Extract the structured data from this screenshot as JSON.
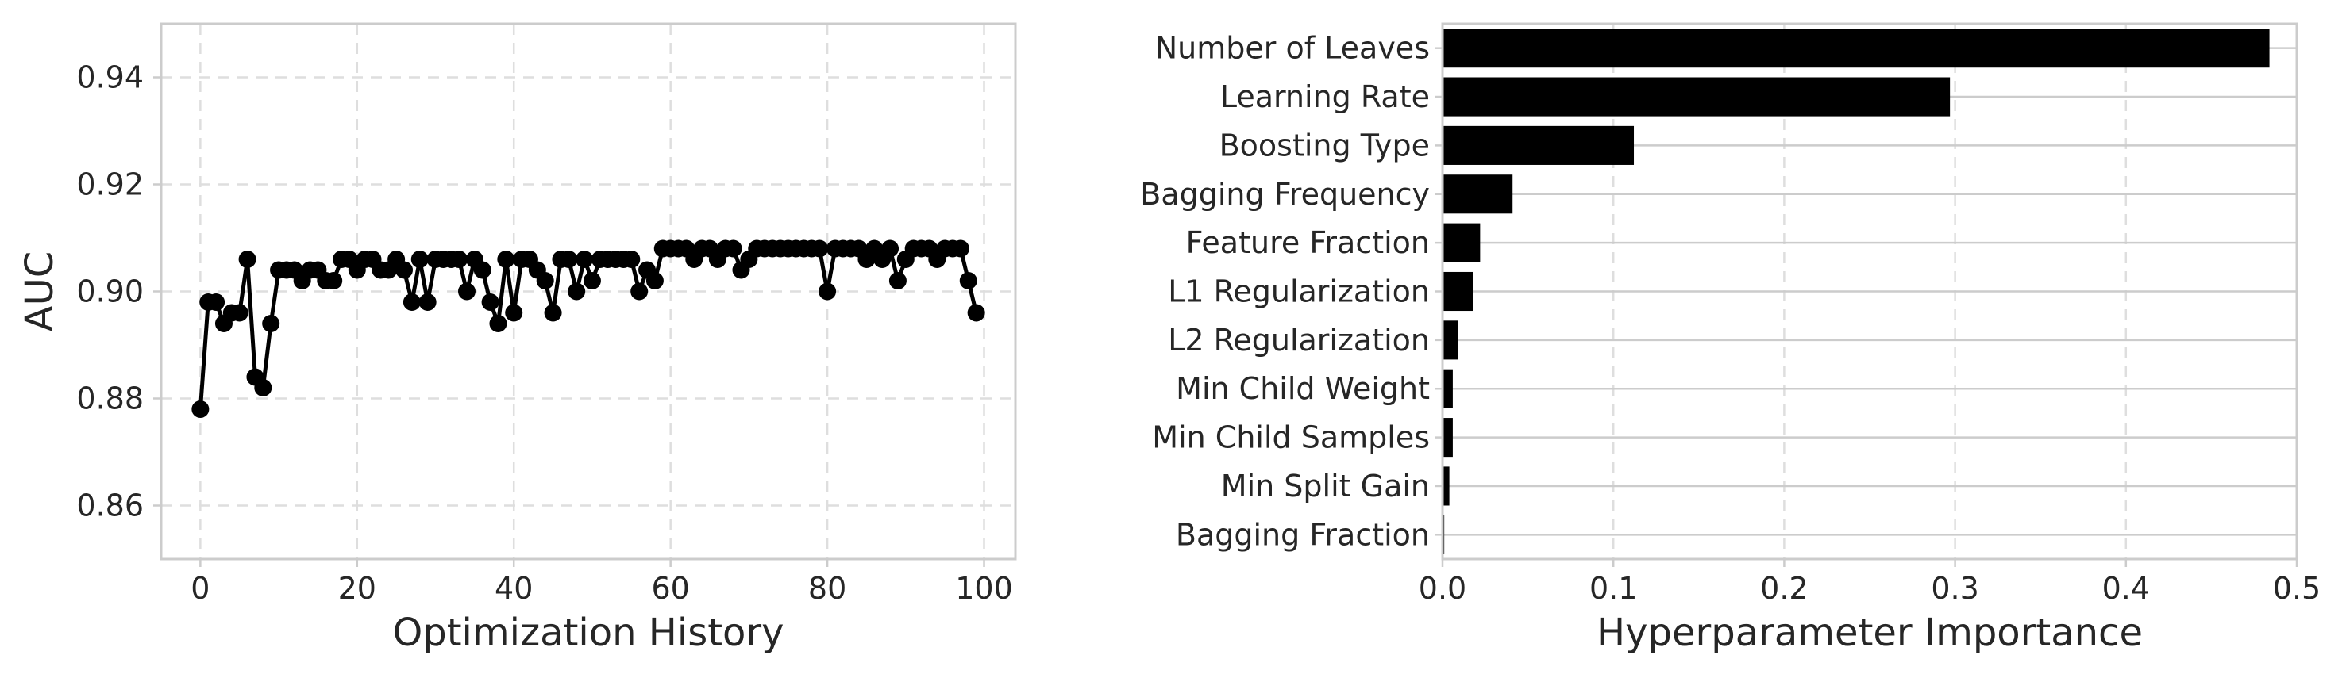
{
  "colors": {
    "marks": "#000000",
    "frame": "#cccccc",
    "grid": "#dedede",
    "text": "#262626"
  },
  "chart_data": [
    {
      "type": "line",
      "title": "",
      "xlabel": "Optimization History",
      "ylabel": "AUC",
      "xlim": [
        -5,
        104
      ],
      "ylim": [
        0.85,
        0.95
      ],
      "xticks": [
        0,
        20,
        40,
        60,
        80,
        100
      ],
      "xtick_labels": [
        "0",
        "20",
        "40",
        "60",
        "80",
        "100"
      ],
      "yticks": [
        0.86,
        0.88,
        0.9,
        0.92,
        0.94
      ],
      "ytick_labels": [
        "0.86",
        "0.88",
        "0.90",
        "0.92",
        "0.94"
      ],
      "grid": true,
      "markers": true,
      "x": [
        0,
        1,
        2,
        3,
        4,
        5,
        6,
        7,
        8,
        9,
        10,
        11,
        12,
        13,
        14,
        15,
        16,
        17,
        18,
        19,
        20,
        21,
        22,
        23,
        24,
        25,
        26,
        27,
        28,
        29,
        30,
        31,
        32,
        33,
        34,
        35,
        36,
        37,
        38,
        39,
        40,
        41,
        42,
        43,
        44,
        45,
        46,
        47,
        48,
        49,
        50,
        51,
        52,
        53,
        54,
        55,
        56,
        57,
        58,
        59,
        60,
        61,
        62,
        63,
        64,
        65,
        66,
        67,
        68,
        69,
        70,
        71,
        72,
        73,
        74,
        75,
        76,
        77,
        78,
        79,
        80,
        81,
        82,
        83,
        84,
        85,
        86,
        87,
        88,
        89,
        90,
        91,
        92,
        93,
        94,
        95,
        96,
        97,
        98,
        99
      ],
      "y": [
        0.878,
        0.898,
        0.898,
        0.894,
        0.896,
        0.896,
        0.906,
        0.884,
        0.882,
        0.894,
        0.904,
        0.904,
        0.904,
        0.902,
        0.904,
        0.904,
        0.902,
        0.902,
        0.906,
        0.906,
        0.904,
        0.906,
        0.906,
        0.904,
        0.904,
        0.906,
        0.904,
        0.898,
        0.906,
        0.898,
        0.906,
        0.906,
        0.906,
        0.906,
        0.9,
        0.906,
        0.904,
        0.898,
        0.894,
        0.906,
        0.896,
        0.906,
        0.906,
        0.904,
        0.902,
        0.896,
        0.906,
        0.906,
        0.9,
        0.906,
        0.902,
        0.906,
        0.906,
        0.906,
        0.906,
        0.906,
        0.9,
        0.904,
        0.902,
        0.908,
        0.908,
        0.908,
        0.908,
        0.906,
        0.908,
        0.908,
        0.906,
        0.908,
        0.908,
        0.904,
        0.906,
        0.908,
        0.908,
        0.908,
        0.908,
        0.908,
        0.908,
        0.908,
        0.908,
        0.908,
        0.9,
        0.908,
        0.908,
        0.908,
        0.908,
        0.906,
        0.908,
        0.906,
        0.908,
        0.902,
        0.906,
        0.908,
        0.908,
        0.908,
        0.906,
        0.908,
        0.908,
        0.908,
        0.902,
        0.896
      ]
    },
    {
      "type": "bar",
      "orientation": "horizontal",
      "title": "",
      "xlabel": "Hyperparameter Importance",
      "ylabel": "",
      "xlim": [
        0,
        0.5
      ],
      "xticks": [
        0.0,
        0.1,
        0.2,
        0.3,
        0.4,
        0.5
      ],
      "xtick_labels": [
        "0.0",
        "0.1",
        "0.2",
        "0.3",
        "0.4",
        "0.5"
      ],
      "grid": true,
      "categories": [
        "Number of Leaves",
        "Learning Rate",
        "Boosting Type",
        "Bagging Frequency",
        "Feature Fraction",
        "L1 Regularization",
        "L2 Regularization",
        "Min Child Weight",
        "Min Child Samples",
        "Min Split Gain",
        "Bagging Fraction"
      ],
      "values": [
        0.484,
        0.297,
        0.112,
        0.041,
        0.022,
        0.018,
        0.009,
        0.006,
        0.006,
        0.004,
        0.001
      ]
    }
  ]
}
